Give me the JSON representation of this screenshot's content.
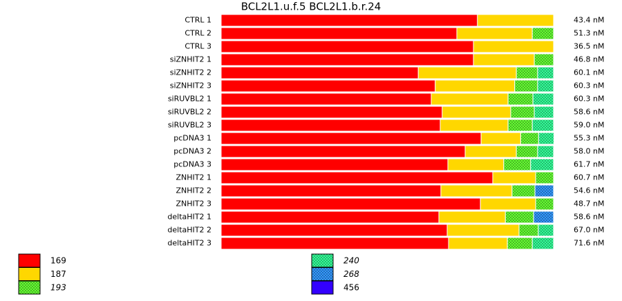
{
  "chart_data": {
    "type": "stacked-bar-horizontal",
    "title": "BCL2L1.u.f.5  BCL2L1.b.r.24",
    "categories": [
      "CTRL 1",
      "CTRL 2",
      "CTRL 3",
      "siZNHIT2 1",
      "siZNHIT2 2",
      "siZNHIT2 3",
      "siRUVBL2 1",
      "siRUVBL2 2",
      "siRUVBL2 3",
      "pcDNA3 1",
      "pcDNA3 2",
      "pcDNA3 3",
      "ZNHIT2 1",
      "ZNHIT2 2",
      "ZNHIT2 3",
      "deltaHIT2 1",
      "deltaHIT2 2",
      "deltaHIT2 3"
    ],
    "row_totals": [
      "43.4 nM",
      "51.3 nM",
      "36.5 nM",
      "46.8 nM",
      "60.1 nM",
      "60.3 nM",
      "60.3 nM",
      "58.6 nM",
      "59.0 nM",
      "55.3 nM",
      "58.0 nM",
      "61.7 nM",
      "60.7 nM",
      "54.6 nM",
      "48.7 nM",
      "58.6 nM",
      "67.0 nM",
      "71.6 nM"
    ],
    "xlim": [
      0,
      100
    ],
    "series": [
      {
        "name": "169",
        "color": "#ff0000",
        "pattern": "solid",
        "italic": false,
        "values": [
          77.1,
          70.9,
          75.9,
          75.9,
          59.3,
          64.4,
          63.2,
          66.5,
          65.9,
          78.2,
          73.4,
          68.2,
          81.7,
          66.1,
          78.0,
          65.5,
          68.0,
          68.4
        ]
      },
      {
        "name": "187",
        "color": "#ffd700",
        "pattern": "solid",
        "italic": false,
        "values": [
          22.9,
          22.7,
          24.1,
          18.3,
          29.5,
          23.9,
          23.1,
          20.6,
          20.4,
          11.9,
          15.4,
          16.8,
          12.9,
          21.4,
          16.6,
          20.0,
          21.6,
          17.7
        ]
      },
      {
        "name": "193",
        "color": "#66ff33",
        "pattern": "checker",
        "italic": true,
        "values": [
          null,
          6.4,
          null,
          5.8,
          6.4,
          6.9,
          7.5,
          7.1,
          7.3,
          5.4,
          6.4,
          8.1,
          5.4,
          6.9,
          5.4,
          8.5,
          5.8,
          7.5
        ]
      },
      {
        "name": "240",
        "color": "#33ff99",
        "pattern": "checker",
        "italic": true,
        "values": [
          null,
          null,
          null,
          null,
          4.8,
          4.8,
          6.2,
          5.8,
          6.4,
          4.6,
          4.8,
          6.9,
          null,
          null,
          null,
          null,
          4.6,
          6.4
        ]
      },
      {
        "name": "268",
        "color": "#3399ff",
        "pattern": "checker",
        "italic": true,
        "values": [
          null,
          null,
          null,
          null,
          null,
          null,
          null,
          null,
          null,
          null,
          null,
          null,
          null,
          5.6,
          null,
          6.0,
          null,
          null
        ]
      },
      {
        "name": "456",
        "color": "#3300ff",
        "pattern": "solid",
        "italic": false,
        "values": [
          null,
          null,
          null,
          null,
          null,
          null,
          null,
          null,
          null,
          null,
          null,
          null,
          null,
          null,
          null,
          null,
          null,
          null
        ]
      }
    ]
  }
}
